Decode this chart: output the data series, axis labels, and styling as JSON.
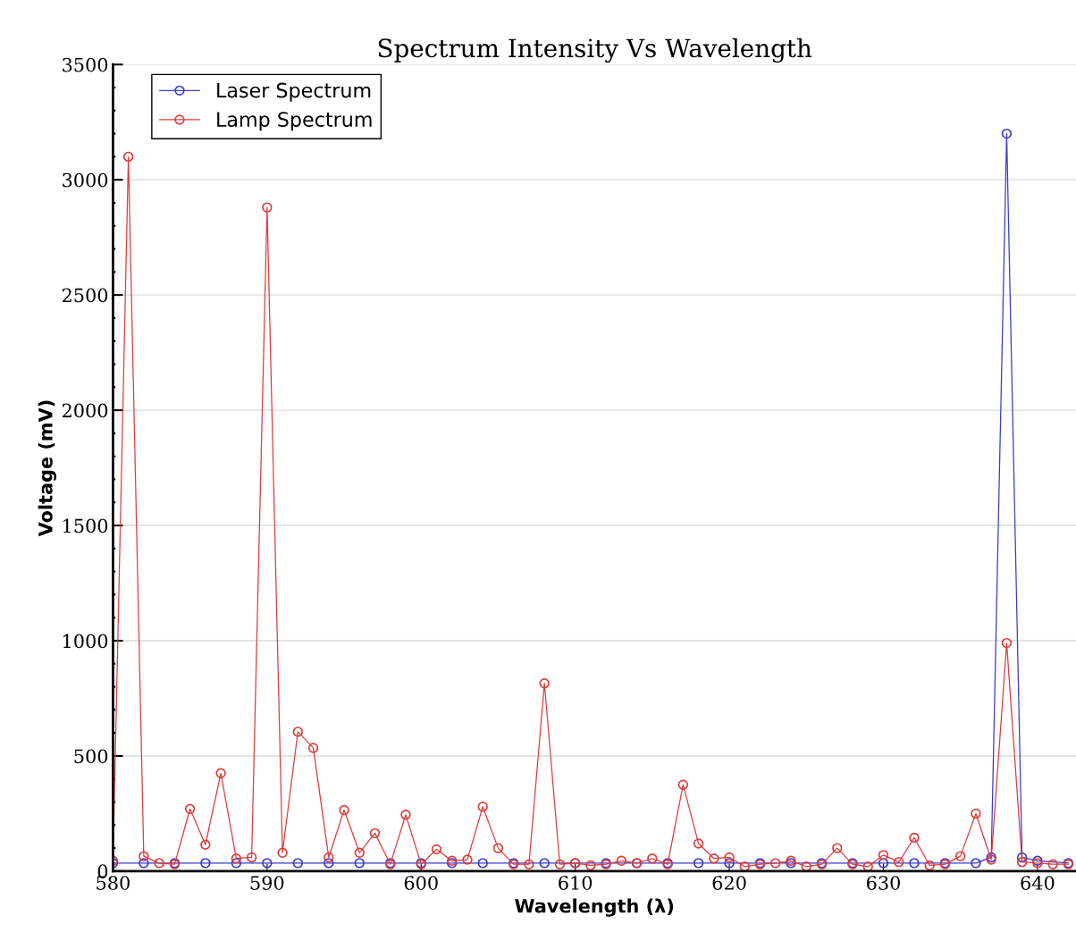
{
  "chart_data": {
    "type": "line",
    "title": "Spectrum Intensity Vs Wavelength",
    "xlabel": "Wavelength (λ)",
    "ylabel": "Voltage (mV)",
    "xlim": [
      580,
      642.5
    ],
    "xticks": [
      580,
      590,
      600,
      610,
      620,
      630,
      640
    ],
    "ylim": [
      0,
      3500
    ],
    "yticks": [
      0,
      500,
      1000,
      1500,
      2000,
      2500,
      3000,
      3500
    ],
    "grid": "y",
    "legend": "top left",
    "marker": "circle",
    "series": [
      {
        "name": "Laser Spectrum",
        "color": "#3a3acc",
        "line_style": "solid",
        "x": [
          580,
          582,
          584,
          586,
          588,
          590,
          592,
          594,
          596,
          598,
          600,
          602,
          604,
          606,
          608,
          610,
          612,
          614,
          616,
          618,
          620,
          622,
          624,
          626,
          628,
          630,
          632,
          634,
          636,
          637,
          638,
          639,
          640,
          642
        ],
        "values": [
          35,
          35,
          35,
          35,
          35,
          35,
          35,
          35,
          35,
          35,
          35,
          35,
          35,
          35,
          35,
          35,
          35,
          35,
          35,
          35,
          35,
          35,
          35,
          35,
          35,
          35,
          35,
          35,
          35,
          60,
          3200,
          60,
          45,
          35
        ]
      },
      {
        "name": "Lamp Spectrum",
        "color": "#dd3c3c",
        "line_style": "solid",
        "x": [
          580,
          581,
          582,
          583,
          584,
          585,
          586,
          587,
          588,
          589,
          590,
          591,
          592,
          593,
          594,
          595,
          596,
          597,
          598,
          599,
          600,
          601,
          602,
          603,
          604,
          605,
          606,
          607,
          608,
          609,
          610,
          611,
          612,
          613,
          614,
          615,
          616,
          617,
          618,
          619,
          620,
          621,
          622,
          623,
          624,
          625,
          626,
          627,
          628,
          629,
          630,
          631,
          632,
          633,
          634,
          635,
          636,
          637,
          638,
          639,
          640,
          641,
          642
        ],
        "values": [
          45,
          3100,
          65,
          35,
          30,
          270,
          115,
          425,
          55,
          60,
          2880,
          80,
          605,
          535,
          60,
          265,
          80,
          165,
          30,
          245,
          30,
          95,
          45,
          50,
          280,
          100,
          30,
          30,
          815,
          30,
          35,
          25,
          30,
          45,
          35,
          55,
          30,
          375,
          120,
          55,
          60,
          20,
          30,
          35,
          45,
          20,
          30,
          100,
          30,
          20,
          70,
          40,
          145,
          25,
          30,
          65,
          250,
          50,
          990,
          40,
          35,
          30,
          30
        ]
      }
    ]
  }
}
